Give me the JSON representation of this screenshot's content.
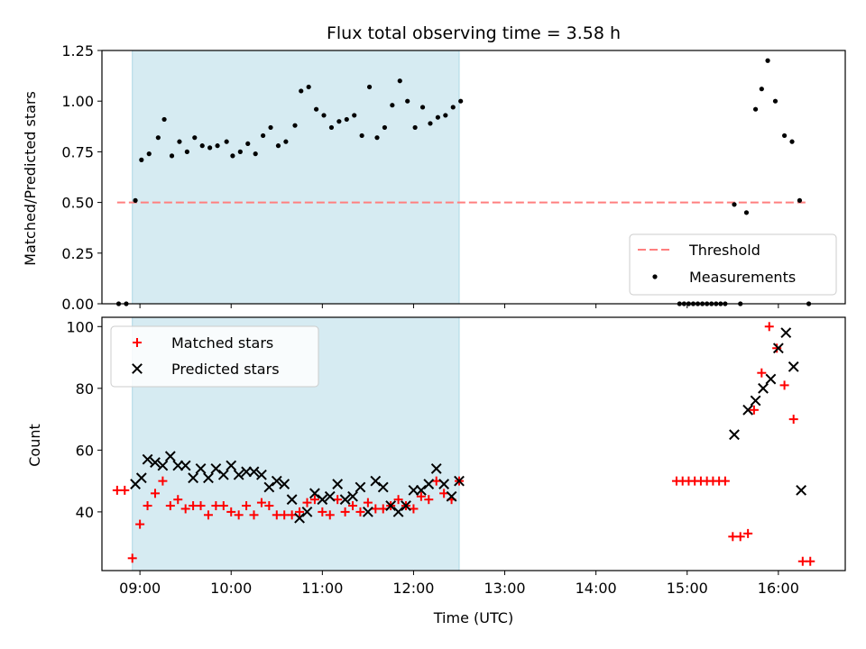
{
  "chart_data": {
    "title": "Flux total observing time = 3.58 h",
    "xlabel": "Time (UTC)",
    "x_ticks": [
      "09:00",
      "10:00",
      "11:00",
      "12:00",
      "13:00",
      "14:00",
      "15:00",
      "16:00"
    ],
    "xlim": [
      "08:35",
      "16:44"
    ],
    "shaded_interval": [
      "08:55",
      "12:30"
    ],
    "colors": {
      "shade": "#add8e6",
      "threshold": "#ff7f7f",
      "matched": "#ff0000",
      "predicted": "#000000",
      "measurements": "#000000"
    },
    "panels": [
      {
        "type": "scatter",
        "ylabel": "Matched/Predicted stars",
        "ylim": [
          0,
          1.25
        ],
        "y_ticks": [
          "0.00",
          "0.25",
          "0.50",
          "0.75",
          "1.00",
          "1.25"
        ],
        "legend_position": "lower-right",
        "threshold": {
          "name": "Threshold",
          "value": 0.5,
          "x_range": [
            "08:45",
            "16:20"
          ]
        },
        "series": [
          {
            "name": "Measurements",
            "marker": "dot",
            "points": [
              [
                "08:46",
                0
              ],
              [
                "08:51",
                0
              ],
              [
                "08:57",
                0.51
              ],
              [
                "09:01",
                0.71
              ],
              [
                "09:06",
                0.74
              ],
              [
                "09:12",
                0.82
              ],
              [
                "09:16",
                0.91
              ],
              [
                "09:21",
                0.73
              ],
              [
                "09:26",
                0.8
              ],
              [
                "09:31",
                0.75
              ],
              [
                "09:36",
                0.82
              ],
              [
                "09:41",
                0.78
              ],
              [
                "09:46",
                0.77
              ],
              [
                "09:51",
                0.78
              ],
              [
                "09:57",
                0.8
              ],
              [
                "10:01",
                0.73
              ],
              [
                "10:06",
                0.75
              ],
              [
                "10:11",
                0.79
              ],
              [
                "10:16",
                0.74
              ],
              [
                "10:21",
                0.83
              ],
              [
                "10:26",
                0.87
              ],
              [
                "10:31",
                0.78
              ],
              [
                "10:36",
                0.8
              ],
              [
                "10:42",
                0.88
              ],
              [
                "10:46",
                1.05
              ],
              [
                "10:51",
                1.07
              ],
              [
                "10:56",
                0.96
              ],
              [
                "11:01",
                0.93
              ],
              [
                "11:06",
                0.87
              ],
              [
                "11:11",
                0.9
              ],
              [
                "11:16",
                0.91
              ],
              [
                "11:21",
                0.93
              ],
              [
                "11:26",
                0.83
              ],
              [
                "11:31",
                1.07
              ],
              [
                "11:36",
                0.82
              ],
              [
                "11:41",
                0.87
              ],
              [
                "11:46",
                0.98
              ],
              [
                "11:51",
                1.1
              ],
              [
                "11:56",
                1.0
              ],
              [
                "12:01",
                0.87
              ],
              [
                "12:06",
                0.97
              ],
              [
                "12:11",
                0.89
              ],
              [
                "12:16",
                0.92
              ],
              [
                "12:21",
                0.93
              ],
              [
                "12:26",
                0.97
              ],
              [
                "12:31",
                1.0
              ],
              [
                "14:55",
                0
              ],
              [
                "14:58",
                0
              ],
              [
                "15:01",
                0
              ],
              [
                "15:04",
                0
              ],
              [
                "15:07",
                0
              ],
              [
                "15:10",
                0
              ],
              [
                "15:13",
                0
              ],
              [
                "15:16",
                0
              ],
              [
                "15:19",
                0
              ],
              [
                "15:22",
                0
              ],
              [
                "15:25",
                0
              ],
              [
                "15:31",
                0.49
              ],
              [
                "15:35",
                0
              ],
              [
                "15:39",
                0.45
              ],
              [
                "15:45",
                0.96
              ],
              [
                "15:49",
                1.06
              ],
              [
                "15:53",
                1.2
              ],
              [
                "15:58",
                1.0
              ],
              [
                "16:04",
                0.83
              ],
              [
                "16:09",
                0.8
              ],
              [
                "16:14",
                0.51
              ],
              [
                "16:20",
                0
              ]
            ]
          }
        ]
      },
      {
        "type": "scatter",
        "ylabel": "Count",
        "ylim": [
          21,
          103
        ],
        "y_ticks": [
          "40",
          "60",
          "80",
          "100"
        ],
        "legend_position": "upper-left",
        "series": [
          {
            "name": "Matched stars",
            "marker": "plus",
            "points": [
              [
                "08:45",
                47
              ],
              [
                "08:50",
                47
              ],
              [
                "08:55",
                25
              ],
              [
                "09:00",
                36
              ],
              [
                "09:05",
                42
              ],
              [
                "09:10",
                46
              ],
              [
                "09:15",
                50
              ],
              [
                "09:20",
                42
              ],
              [
                "09:25",
                44
              ],
              [
                "09:30",
                41
              ],
              [
                "09:35",
                42
              ],
              [
                "09:40",
                42
              ],
              [
                "09:45",
                39
              ],
              [
                "09:50",
                42
              ],
              [
                "09:55",
                42
              ],
              [
                "10:00",
                40
              ],
              [
                "10:05",
                39
              ],
              [
                "10:10",
                42
              ],
              [
                "10:15",
                39
              ],
              [
                "10:20",
                43
              ],
              [
                "10:25",
                42
              ],
              [
                "10:30",
                39
              ],
              [
                "10:35",
                39
              ],
              [
                "10:40",
                39
              ],
              [
                "10:45",
                40
              ],
              [
                "10:50",
                43
              ],
              [
                "10:55",
                44
              ],
              [
                "11:00",
                40
              ],
              [
                "11:05",
                39
              ],
              [
                "11:10",
                44
              ],
              [
                "11:15",
                40
              ],
              [
                "11:20",
                42
              ],
              [
                "11:25",
                40
              ],
              [
                "11:30",
                43
              ],
              [
                "11:35",
                41
              ],
              [
                "11:40",
                41
              ],
              [
                "11:45",
                42
              ],
              [
                "11:50",
                44
              ],
              [
                "11:55",
                42
              ],
              [
                "12:00",
                41
              ],
              [
                "12:05",
                45
              ],
              [
                "12:10",
                44
              ],
              [
                "12:15",
                50
              ],
              [
                "12:20",
                46
              ],
              [
                "12:25",
                44
              ],
              [
                "12:30",
                50
              ],
              [
                "14:53",
                50
              ],
              [
                "14:57",
                50
              ],
              [
                "15:01",
                50
              ],
              [
                "15:05",
                50
              ],
              [
                "15:09",
                50
              ],
              [
                "15:13",
                50
              ],
              [
                "15:17",
                50
              ],
              [
                "15:21",
                50
              ],
              [
                "15:25",
                50
              ],
              [
                "15:30",
                32
              ],
              [
                "15:35",
                32
              ],
              [
                "15:40",
                33
              ],
              [
                "15:44",
                73
              ],
              [
                "15:49",
                85
              ],
              [
                "15:54",
                100
              ],
              [
                "15:59",
                93
              ],
              [
                "16:04",
                81
              ],
              [
                "16:10",
                70
              ],
              [
                "16:16",
                24
              ],
              [
                "16:21",
                24
              ]
            ]
          },
          {
            "name": "Predicted stars",
            "marker": "x",
            "points": [
              [
                "08:57",
                49
              ],
              [
                "09:01",
                51
              ],
              [
                "09:05",
                57
              ],
              [
                "09:10",
                56
              ],
              [
                "09:15",
                55
              ],
              [
                "09:20",
                58
              ],
              [
                "09:25",
                55
              ],
              [
                "09:30",
                55
              ],
              [
                "09:35",
                51
              ],
              [
                "09:40",
                54
              ],
              [
                "09:45",
                51
              ],
              [
                "09:50",
                54
              ],
              [
                "09:55",
                52
              ],
              [
                "10:00",
                55
              ],
              [
                "10:05",
                52
              ],
              [
                "10:10",
                53
              ],
              [
                "10:15",
                53
              ],
              [
                "10:20",
                52
              ],
              [
                "10:25",
                48
              ],
              [
                "10:30",
                50
              ],
              [
                "10:35",
                49
              ],
              [
                "10:40",
                44
              ],
              [
                "10:45",
                38
              ],
              [
                "10:50",
                40
              ],
              [
                "10:55",
                46
              ],
              [
                "11:00",
                44
              ],
              [
                "11:05",
                45
              ],
              [
                "11:10",
                49
              ],
              [
                "11:15",
                44
              ],
              [
                "11:20",
                45
              ],
              [
                "11:25",
                48
              ],
              [
                "11:30",
                40
              ],
              [
                "11:35",
                50
              ],
              [
                "11:40",
                48
              ],
              [
                "11:45",
                42
              ],
              [
                "11:50",
                40
              ],
              [
                "11:55",
                42
              ],
              [
                "12:00",
                47
              ],
              [
                "12:05",
                47
              ],
              [
                "12:10",
                49
              ],
              [
                "12:15",
                54
              ],
              [
                "12:20",
                49
              ],
              [
                "12:25",
                45
              ],
              [
                "12:30",
                50
              ],
              [
                "15:31",
                65
              ],
              [
                "15:40",
                73
              ],
              [
                "15:45",
                76
              ],
              [
                "15:50",
                80
              ],
              [
                "15:55",
                83
              ],
              [
                "16:00",
                93
              ],
              [
                "16:05",
                98
              ],
              [
                "16:10",
                87
              ],
              [
                "16:15",
                47
              ]
            ]
          }
        ]
      }
    ]
  }
}
